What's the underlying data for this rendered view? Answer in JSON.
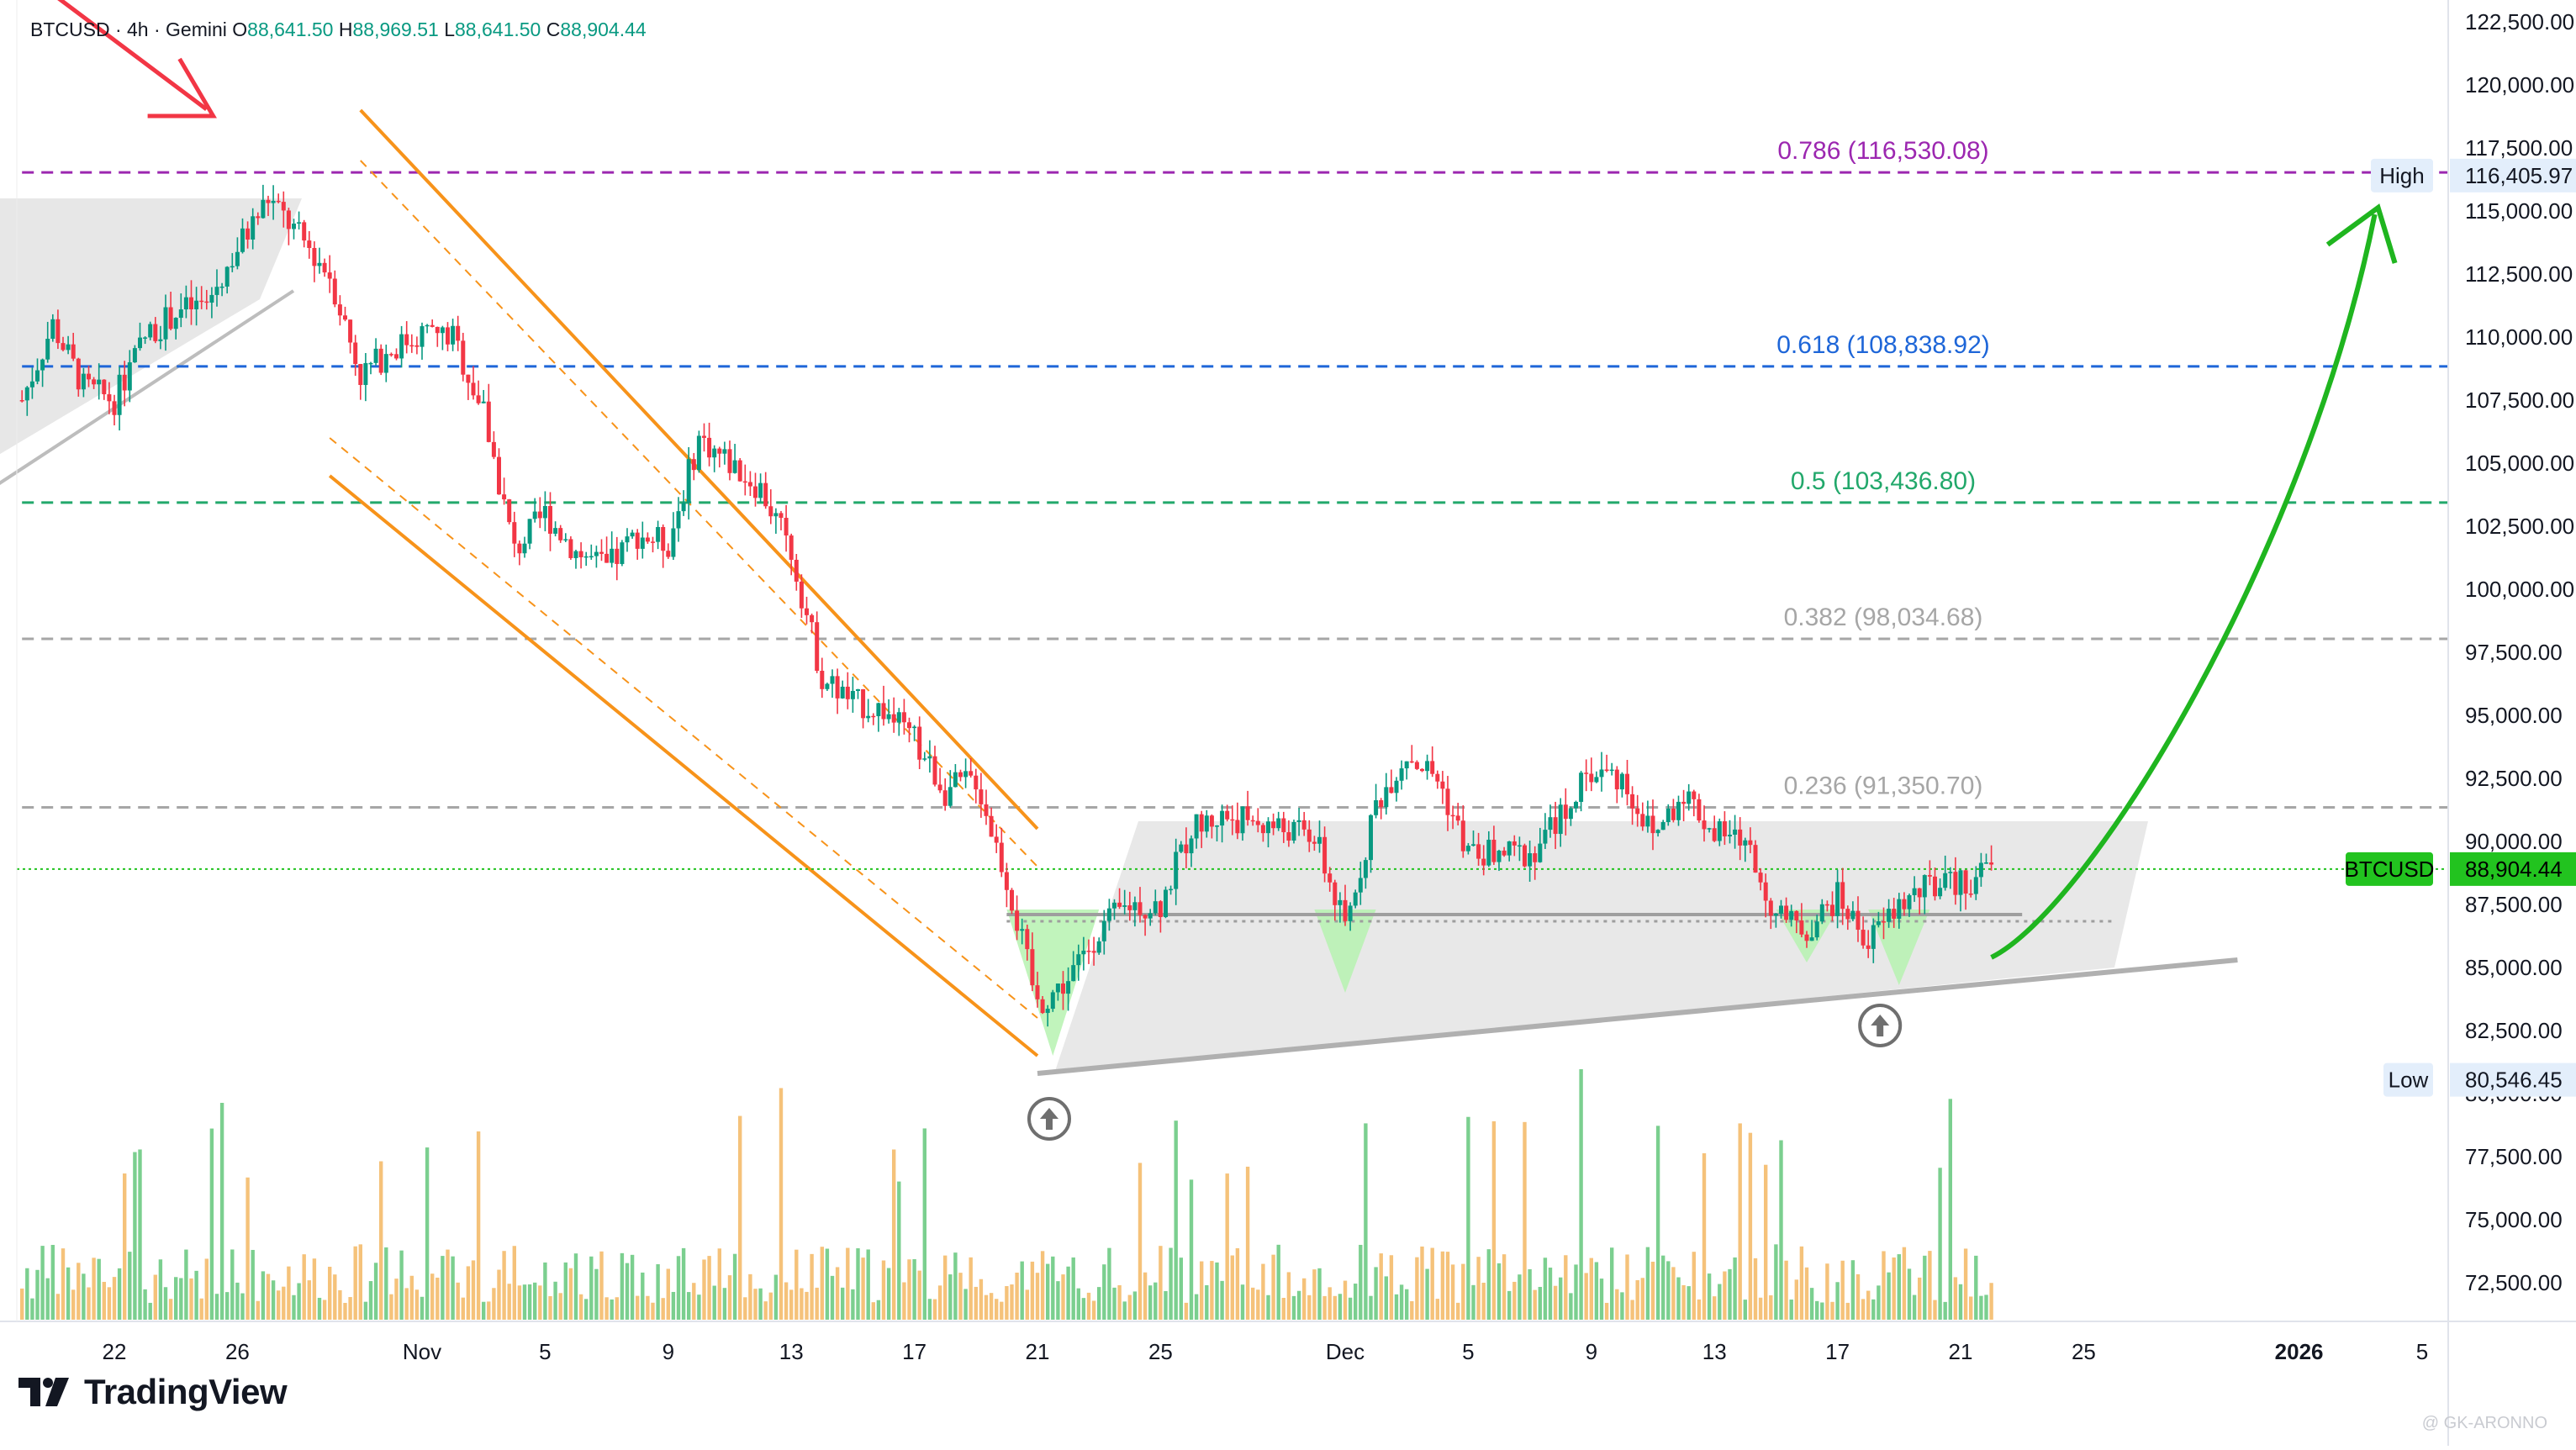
{
  "header": {
    "symbol_line": "BTCUSD · 4h · Gemini",
    "open_label": "O",
    "open": "88,641.50",
    "high_label": "H",
    "high": "88,969.51",
    "low_label": "L",
    "low": "88,641.50",
    "close_label": "C",
    "close": "88,904.44"
  },
  "brand": {
    "name": "TradingView"
  },
  "watermark": "@ GK-ARONNO",
  "colors": {
    "up": "#089981",
    "down": "#f23645",
    "volume_up": "#7bcf8f",
    "volume_down": "#f5c27a",
    "channel": "#f7931a",
    "arrow_up": "#1fb51f",
    "arrow_down": "#f23645",
    "fib_0786": "#9c27b0",
    "fib_0618": "#1e66d8",
    "fib_05": "#22a86b",
    "fib_0382": "#a6a6a6",
    "fib_0236": "#a6a6a6",
    "price_badge": "#22c31f",
    "range_box": "#e4e4e4"
  },
  "chart_data": {
    "type": "candlestick",
    "symbol": "BTCUSD",
    "interval": "4h",
    "exchange": "Gemini",
    "y_axis": {
      "min": 70000,
      "max": 122500,
      "ticks": [
        72500,
        75000,
        77500,
        80000,
        82500,
        85000,
        87500,
        90000,
        92500,
        95000,
        97500,
        100000,
        102500,
        105000,
        107500,
        110000,
        112500,
        115000,
        117500,
        120000,
        122500
      ],
      "tick_labels": [
        "72,500.00",
        "75,000.00",
        "77,500.00",
        "80,000.00",
        "82,500.00",
        "85,000.00",
        "87,500.00",
        "90,000.00",
        "92,500.00",
        "95,000.00",
        "97,500.00",
        "100,000.00",
        "102,500.00",
        "105,000.00",
        "107,500.00",
        "110,000.00",
        "112,500.00",
        "115,000.00",
        "117,500.00",
        "120,000.00",
        "122,500.00"
      ]
    },
    "x_axis": {
      "start": "2025-10-19",
      "end": "2026-01-05",
      "tick_dates": [
        "2025-10-22",
        "2025-10-26",
        "2025-11-01",
        "2025-11-05",
        "2025-11-09",
        "2025-11-13",
        "2025-11-17",
        "2025-11-21",
        "2025-11-25",
        "2025-12-01",
        "2025-12-05",
        "2025-12-09",
        "2025-12-13",
        "2025-12-17",
        "2025-12-21",
        "2025-12-25",
        "2026-01-01",
        "2026-01-05"
      ],
      "tick_labels": [
        "22",
        "26",
        "Nov",
        "5",
        "9",
        "13",
        "17",
        "21",
        "25",
        "Dec",
        "5",
        "9",
        "13",
        "17",
        "21",
        "25",
        "2026",
        "5"
      ],
      "bold_labels": [
        "2026"
      ]
    },
    "current_price": {
      "label": "BTCUSD",
      "value": 88904.44,
      "value_text": "88,904.44"
    },
    "high_marker": {
      "label": "High",
      "value": 116405.97,
      "value_text": "116,405.97"
    },
    "low_marker": {
      "label": "Low",
      "value": 80546.45,
      "value_text": "80,546.45"
    },
    "fib_levels": [
      {
        "ratio": "0.786",
        "value": 116530.08,
        "label": "0.786 (116,530.08)",
        "color": "#9c27b0",
        "style": "dashed"
      },
      {
        "ratio": "0.618",
        "value": 108838.92,
        "label": "0.618 (108,838.92)",
        "color": "#1e66d8",
        "style": "dashed"
      },
      {
        "ratio": "0.5",
        "value": 103436.8,
        "label": "0.5 (103,436.80)",
        "color": "#22a86b",
        "style": "dashed"
      },
      {
        "ratio": "0.382",
        "value": 98034.68,
        "label": "0.382 (98,034.68)",
        "color": "#a6a6a6",
        "style": "dashed"
      },
      {
        "ratio": "0.236",
        "value": 91350.7,
        "label": "0.236 (91,350.70)",
        "color": "#a6a6a6",
        "style": "dashed"
      }
    ],
    "price_path": [
      [
        "2025-10-19",
        107500
      ],
      [
        "2025-10-20",
        110500
      ],
      [
        "2025-10-21",
        108000
      ],
      [
        "2025-10-22",
        107500
      ],
      [
        "2025-10-23",
        110000
      ],
      [
        "2025-10-24",
        111000
      ],
      [
        "2025-10-25",
        111300
      ],
      [
        "2025-10-26",
        113500
      ],
      [
        "2025-10-27",
        115500
      ],
      [
        "2025-10-28",
        114000
      ],
      [
        "2025-10-29",
        112500
      ],
      [
        "2025-10-30",
        108500
      ],
      [
        "2025-10-31",
        109500
      ],
      [
        "2025-11-01",
        110200
      ],
      [
        "2025-11-02",
        110000
      ],
      [
        "2025-11-03",
        107000
      ],
      [
        "2025-11-04",
        101500
      ],
      [
        "2025-11-05",
        103000
      ],
      [
        "2025-11-06",
        101500
      ],
      [
        "2025-11-07",
        100800
      ],
      [
        "2025-11-08",
        102200
      ],
      [
        "2025-11-09",
        101800
      ],
      [
        "2025-11-10",
        106000
      ],
      [
        "2025-11-11",
        105000
      ],
      [
        "2025-11-12",
        104000
      ],
      [
        "2025-11-13",
        101500
      ],
      [
        "2025-11-14",
        96500
      ],
      [
        "2025-11-15",
        95500
      ],
      [
        "2025-11-16",
        95200
      ],
      [
        "2025-11-17",
        94000
      ],
      [
        "2025-11-18",
        92000
      ],
      [
        "2025-11-19",
        92500
      ],
      [
        "2025-11-20",
        88500
      ],
      [
        "2025-11-21",
        83500
      ],
      [
        "2025-11-22",
        84500
      ],
      [
        "2025-11-23",
        86500
      ],
      [
        "2025-11-24",
        87500
      ],
      [
        "2025-11-25",
        87500
      ],
      [
        "2025-11-26",
        90500
      ],
      [
        "2025-11-27",
        91000
      ],
      [
        "2025-11-28",
        90800
      ],
      [
        "2025-11-29",
        90500
      ],
      [
        "2025-11-30",
        90200
      ],
      [
        "2025-12-01",
        86500
      ],
      [
        "2025-12-02",
        91500
      ],
      [
        "2025-12-03",
        93500
      ],
      [
        "2025-12-04",
        92500
      ],
      [
        "2025-12-05",
        89500
      ],
      [
        "2025-12-06",
        89500
      ],
      [
        "2025-12-07",
        89500
      ],
      [
        "2025-12-08",
        91000
      ],
      [
        "2025-12-09",
        92800
      ],
      [
        "2025-12-10",
        92500
      ],
      [
        "2025-12-11",
        90200
      ],
      [
        "2025-12-12",
        92000
      ],
      [
        "2025-12-13",
        90300
      ],
      [
        "2025-12-14",
        90000
      ],
      [
        "2025-12-15",
        87000
      ],
      [
        "2025-12-16",
        86500
      ],
      [
        "2025-12-17",
        87800
      ],
      [
        "2025-12-18",
        86000
      ],
      [
        "2025-12-19",
        87500
      ],
      [
        "2025-12-20",
        88200
      ],
      [
        "2025-12-21",
        88300
      ],
      [
        "2025-12-22",
        88904
      ]
    ],
    "channel": {
      "upper": [
        [
          "2025-10-30",
          119000
        ],
        [
          "2025-11-21",
          90500
        ]
      ],
      "lower": [
        [
          "2025-10-29",
          104500
        ],
        [
          "2025-11-21",
          81500
        ]
      ],
      "inner_upper": [
        [
          "2025-10-30",
          117000
        ],
        [
          "2025-11-21",
          89000
        ]
      ],
      "inner_lower": [
        [
          "2025-10-29",
          106000
        ],
        [
          "2025-11-21",
          83000
        ]
      ]
    },
    "support_line": [
      [
        "2025-11-21",
        80800
      ],
      [
        "2025-12-30",
        85300
      ]
    ],
    "neckline": [
      [
        "2025-11-20",
        87100
      ],
      [
        "2025-12-23",
        87100
      ]
    ],
    "range_box": {
      "from": "2025-11-21",
      "to": "2025-12-26",
      "high": 90800,
      "low": 81000
    },
    "rising_wedge": {
      "from": "2025-10-19",
      "to": "2025-10-27",
      "high": 115500,
      "low_start": 103500,
      "low_end": 111500
    },
    "breakout_arrow": [
      [
        "2025-12-22",
        85400
      ],
      [
        "2026-01-01",
        115200
      ]
    ],
    "entry_arrow_date": "2025-10-28",
    "markers": [
      [
        "2025-11-21",
        79000
      ],
      [
        "2025-12-18",
        82700
      ]
    ]
  }
}
